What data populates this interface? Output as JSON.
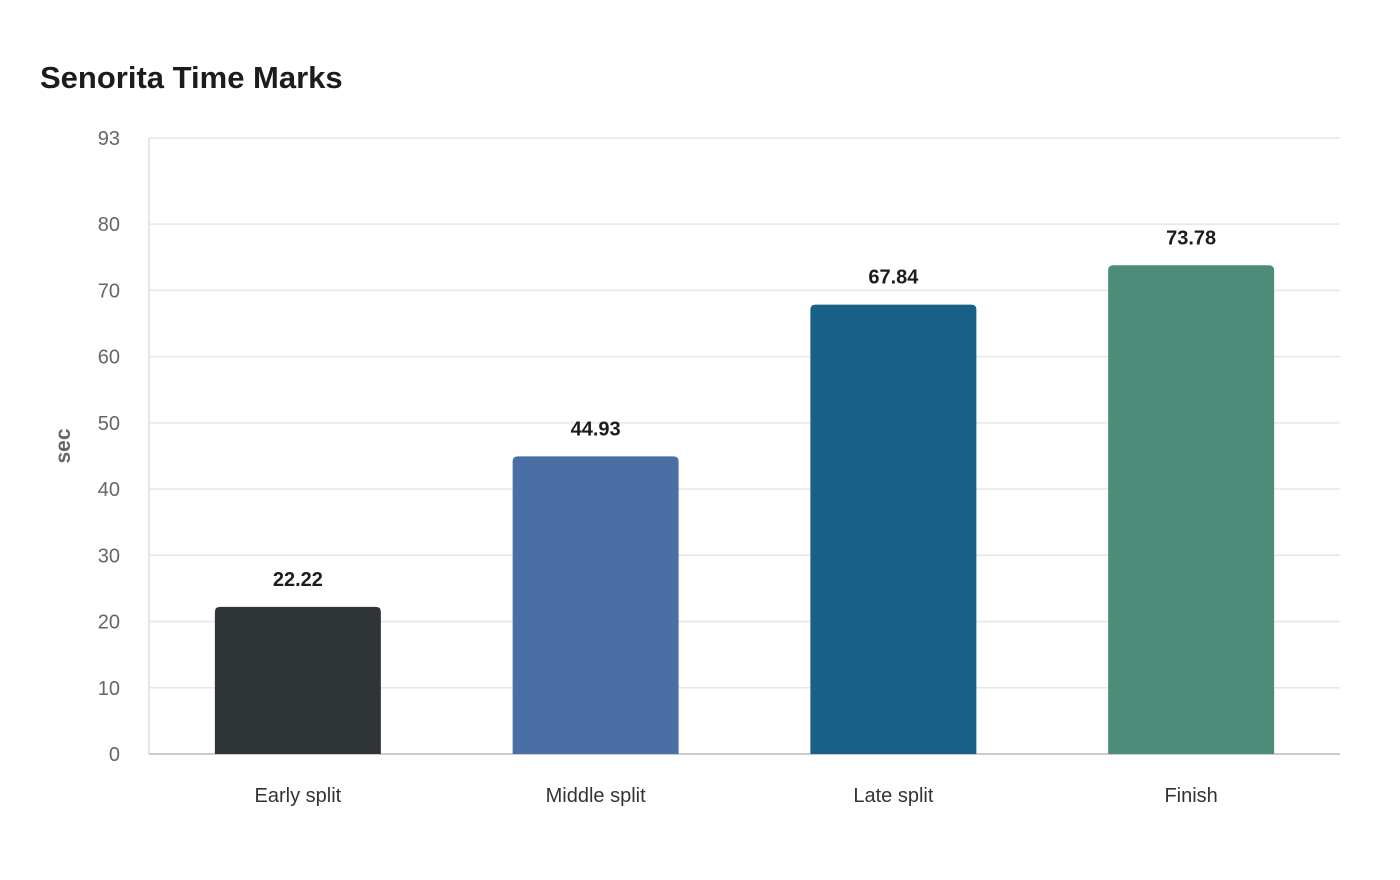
{
  "chart_data": {
    "type": "bar",
    "title": "Senorita Time Marks",
    "xlabel": "",
    "ylabel": "sec",
    "categories": [
      "Early split",
      "Middle split",
      "Late split",
      "Finish"
    ],
    "values": [
      22.22,
      44.93,
      67.84,
      73.78
    ],
    "value_labels": [
      "22.22",
      "44.93",
      "67.84",
      "73.78"
    ],
    "ylim": [
      0,
      93
    ],
    "yticks": [
      0,
      10,
      20,
      30,
      40,
      50,
      60,
      70,
      80,
      93
    ],
    "grid": true,
    "legend": "none",
    "colors": [
      "#2f3537",
      "#4a6fa5",
      "#186088",
      "#4e8c7a"
    ]
  }
}
